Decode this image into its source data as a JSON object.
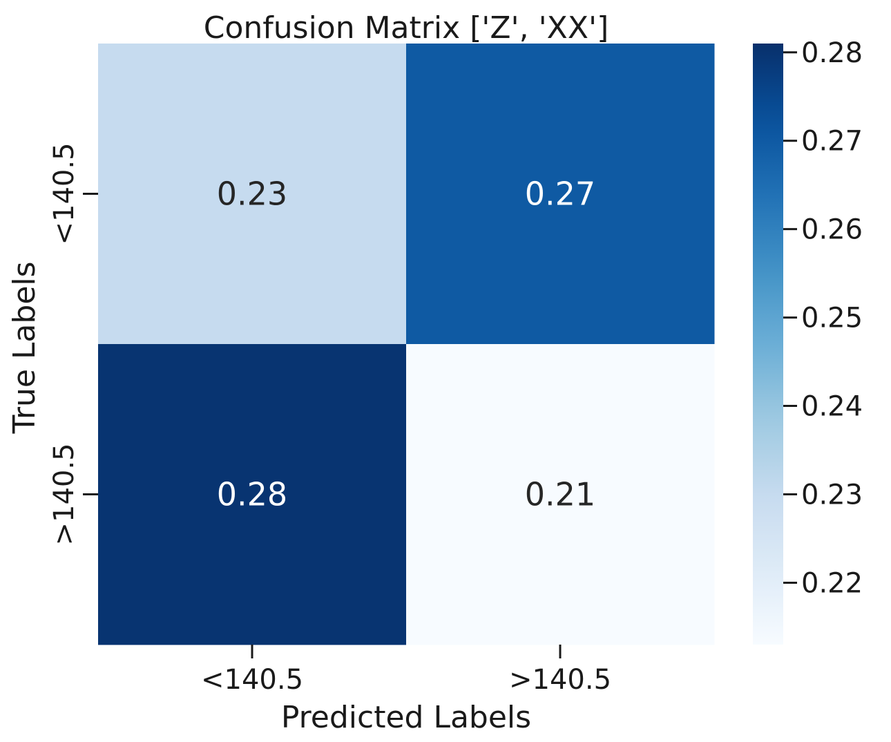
{
  "chart_data": {
    "type": "heatmap",
    "title": "Confusion Matrix ['Z', 'XX']",
    "xlabel": "Predicted Labels",
    "ylabel": "True Labels",
    "x_categories": [
      "<140.5",
      ">140.5"
    ],
    "y_categories": [
      "<140.5",
      ">140.5"
    ],
    "values": [
      [
        0.23,
        0.27
      ],
      [
        0.28,
        0.21
      ]
    ],
    "annotations": [
      [
        "0.23",
        "0.27"
      ],
      [
        "0.28",
        "0.21"
      ]
    ],
    "colormap": "Blues",
    "vmin": 0.213,
    "vmax": 0.281,
    "colorbar_ticks": [
      0.22,
      0.23,
      0.24,
      0.25,
      0.26,
      0.27,
      0.28
    ],
    "colorbar_tick_labels": [
      "0.22",
      "0.23",
      "0.24",
      "0.25",
      "0.26",
      "0.27",
      "0.28"
    ],
    "grid": false,
    "colors": {
      "light_text": "#ffffff",
      "dark_text": "#262626",
      "axis": "#1a1a1a"
    }
  }
}
